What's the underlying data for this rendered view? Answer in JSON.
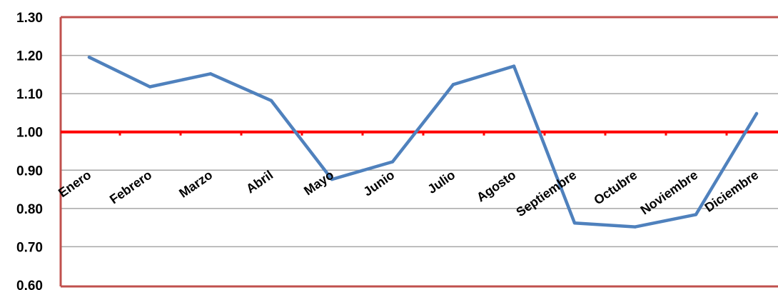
{
  "chart_data": {
    "type": "line",
    "title": "",
    "xlabel": "",
    "ylabel": "",
    "categories": [
      "Enero",
      "Febrero",
      "Marzo",
      "Abril",
      "Mayo",
      "Junio",
      "Julio",
      "Agosto",
      "Septiembre",
      "Octubre",
      "Noviembre",
      "Diciembre"
    ],
    "series": [
      {
        "values": [
          1.195,
          1.118,
          1.152,
          1.082,
          0.876,
          0.922,
          1.124,
          1.172,
          0.762,
          0.752,
          0.784,
          1.048
        ],
        "color": "#4F81BD"
      }
    ],
    "reference_line": {
      "value": 1.0,
      "color": "#FF0000"
    },
    "ylim": [
      0.6,
      1.3
    ],
    "yticks": [
      0.6,
      0.7,
      0.8,
      0.9,
      1.0,
      1.1,
      1.2,
      1.3
    ],
    "ytick_labels": [
      "0.60",
      "0.70",
      "0.80",
      "0.90",
      "1.00",
      "1.10",
      "1.20",
      "1.30"
    ],
    "grid": "horizontal",
    "legend": "none",
    "plot_border_color": "#C0504D",
    "gridline_color": "#A6A6A6"
  }
}
